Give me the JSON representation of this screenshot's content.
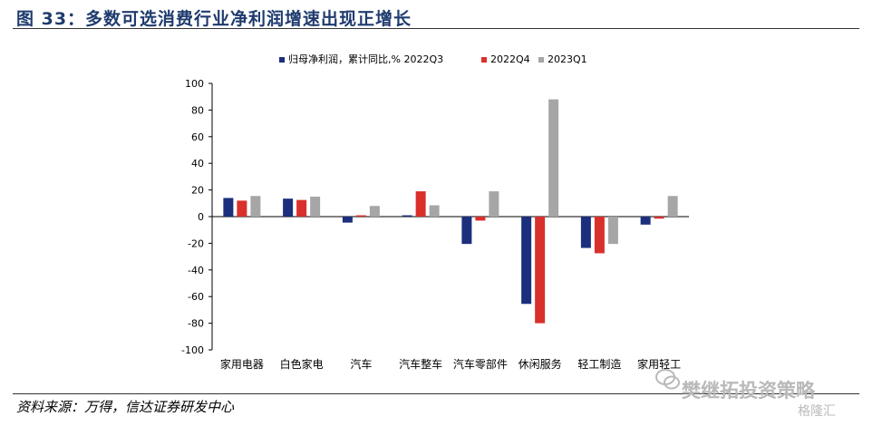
{
  "figure_title": "图 33：多数可选消费行业净利润增速出现正增长",
  "source": "资料来源：万得，信达证券研发中心",
  "watermark": "樊继拓投资策略",
  "watermark_brand": "格隆汇",
  "colors": {
    "title": "#1f3b6e",
    "series": [
      "#1c2f7c",
      "#d9302c",
      "#a6a6a6"
    ],
    "axis": "#000000"
  },
  "chart_data": {
    "type": "bar",
    "legend_prefix": "归母净利润，累计同比,%",
    "legend_position": "top",
    "categories": [
      "家用电器",
      "白色家电",
      "汽车",
      "汽车整车",
      "汽车零部件",
      "休闲服务",
      "轻工制造",
      "家用轻工"
    ],
    "series": [
      {
        "name": "2022Q3",
        "values": [
          14,
          13.5,
          -4.5,
          1,
          -20.5,
          -65.5,
          -23.5,
          -6
        ]
      },
      {
        "name": "2022Q4",
        "values": [
          12,
          12.5,
          1,
          19,
          -3,
          -80,
          -27.5,
          -1.5
        ]
      },
      {
        "name": "2023Q1",
        "values": [
          15.5,
          15,
          8,
          8.5,
          19,
          88,
          -20.5,
          15.5
        ]
      }
    ],
    "ylim": [
      -100,
      100
    ],
    "yticks": [
      "100",
      "80",
      "60",
      "40",
      "20",
      "0",
      "-20",
      "-40",
      "-60",
      "-80",
      "-100"
    ],
    "grid": false
  }
}
